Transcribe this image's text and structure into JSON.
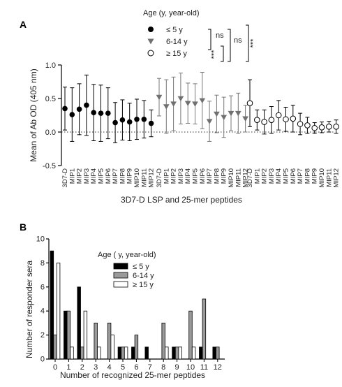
{
  "panel_a_letter": "A",
  "panel_b_letter": "B",
  "chart_data": [
    {
      "type": "scatter",
      "xlabel": "3D7-D LSP and 25-mer peptides",
      "ylabel": "Mean of Ab OD (405 nm)",
      "ylim": [
        -0.5,
        1.0
      ],
      "yticks": [
        "1.0",
        "0.5",
        "0.0",
        "-0.5"
      ],
      "categories": [
        "3D7-D",
        "MIP1",
        "MIP2",
        "MIP3",
        "MIP4",
        "MIP5",
        "MIP6",
        "MIP7",
        "MIP8",
        "MIP9",
        "MIP10",
        "MIP11",
        "MIP12"
      ],
      "legend_title": "Age (y, year-old)",
      "legend_position": "top",
      "reference_line": 0.0,
      "series": [
        {
          "name": "≤ 5 y",
          "marker": "filled-circle",
          "color": "#000000",
          "mean": [
            0.35,
            0.26,
            0.34,
            0.4,
            0.29,
            0.28,
            0.28,
            0.14,
            0.18,
            0.15,
            0.19,
            0.19,
            0.13
          ],
          "err": [
            0.32,
            0.4,
            0.38,
            0.45,
            0.42,
            0.42,
            0.38,
            0.3,
            0.3,
            0.28,
            0.3,
            0.28,
            0.2
          ]
        },
        {
          "name": "6-14 y",
          "marker": "filled-triangle-down",
          "color": "#707070",
          "mean": [
            0.52,
            0.38,
            0.42,
            0.5,
            0.43,
            0.42,
            0.47,
            0.16,
            0.27,
            0.22,
            0.28,
            0.28,
            0.2
          ],
          "err": [
            0.28,
            0.4,
            0.4,
            0.38,
            0.3,
            0.3,
            0.42,
            0.3,
            0.28,
            0.3,
            0.26,
            0.3,
            0.2
          ]
        },
        {
          "name": "≥ 15 y",
          "marker": "open-circle",
          "color": "#000000",
          "mean": [
            0.43,
            0.18,
            0.15,
            0.18,
            0.25,
            0.19,
            0.2,
            0.12,
            0.1,
            0.06,
            0.07,
            0.08,
            0.08
          ],
          "err": [
            0.35,
            0.15,
            0.18,
            0.2,
            0.22,
            0.18,
            0.2,
            0.16,
            0.12,
            0.08,
            0.08,
            0.08,
            0.1
          ]
        }
      ],
      "significance": [
        {
          "between": [
            "≤ 5 y",
            "6-14 y"
          ],
          "label": "ns"
        },
        {
          "between": [
            "≤ 5 y",
            "≥ 15 y"
          ],
          "label": "ns"
        },
        {
          "between": [
            "6-14 y",
            "≥ 15 y"
          ],
          "label": "***"
        },
        {
          "between": [
            "≤ 5 y",
            "≥ 15 y (outer)"
          ],
          "label": "***"
        }
      ]
    },
    {
      "type": "bar",
      "xlabel": "Number of recognized 25-mer peptides",
      "ylabel": "Number of responder sera",
      "ylim": [
        0,
        10
      ],
      "yticks": [
        "0",
        "2",
        "4",
        "6",
        "8",
        "10"
      ],
      "categories": [
        "0",
        "1",
        "2",
        "3",
        "4",
        "5",
        "6",
        "7",
        "8",
        "9",
        "10",
        "11",
        "12"
      ],
      "legend_title": "Age ( y, year-old)",
      "legend_position": "top-center",
      "series": [
        {
          "name": "≤ 5 y",
          "color": "#000000",
          "values": [
            9,
            4,
            6,
            0,
            0,
            1,
            1,
            1,
            0,
            1,
            0,
            1,
            1
          ]
        },
        {
          "name": "6-14 y",
          "color": "#9a9a9a",
          "values": [
            2,
            4,
            1,
            3,
            3,
            1,
            2,
            0,
            3,
            1,
            4,
            5,
            1
          ]
        },
        {
          "name": "≥ 15 y",
          "color": "#ffffff",
          "values": [
            8,
            1,
            4,
            1,
            2,
            1,
            0,
            0,
            1,
            1,
            1,
            0,
            0
          ]
        }
      ]
    }
  ]
}
